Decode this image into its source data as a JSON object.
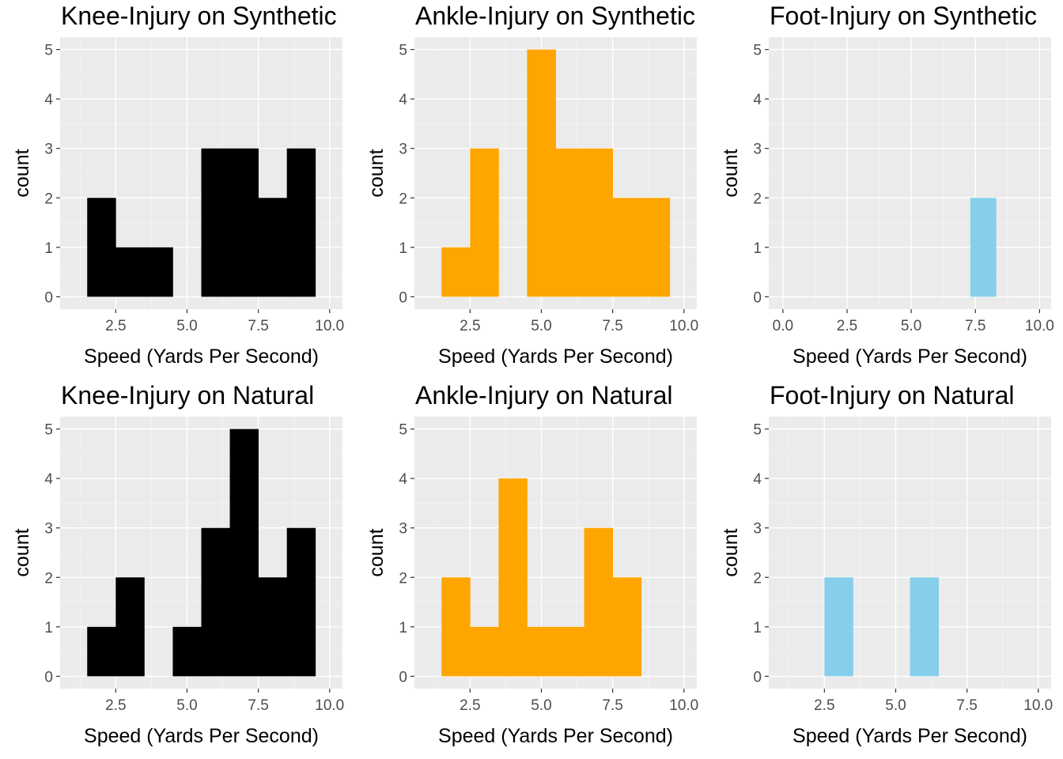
{
  "chart_data": [
    {
      "type": "bar",
      "title": "Knee-Injury on Synthetic",
      "xlabel": "Speed (Yards Per Second)",
      "ylabel": "count",
      "fill": "#000000",
      "bin_width": 1,
      "xlim": [
        0.55,
        10.45
      ],
      "ylim": [
        -0.25,
        5.25
      ],
      "x_ticks": [
        2.5,
        5,
        7.5,
        10
      ],
      "x_tick_labels": [
        "2.5",
        "5.0",
        "7.5",
        "10.0"
      ],
      "y_ticks": [
        0,
        1,
        2,
        3,
        4,
        5
      ],
      "y_tick_labels": [
        "0",
        "1",
        "2",
        "3",
        "4",
        "5"
      ],
      "bin_centers": [
        2,
        3,
        4,
        5,
        6,
        7,
        8,
        9
      ],
      "values": [
        2,
        1,
        1,
        0,
        3,
        3,
        2,
        3
      ]
    },
    {
      "type": "bar",
      "title": "Ankle-Injury on Synthetic",
      "xlabel": "Speed (Yards Per Second)",
      "ylabel": "count",
      "fill": "#FFA500",
      "bin_width": 1,
      "xlim": [
        0.55,
        10.45
      ],
      "ylim": [
        -0.25,
        5.25
      ],
      "x_ticks": [
        2.5,
        5,
        7.5,
        10
      ],
      "x_tick_labels": [
        "2.5",
        "5.0",
        "7.5",
        "10.0"
      ],
      "y_ticks": [
        0,
        1,
        2,
        3,
        4,
        5
      ],
      "y_tick_labels": [
        "0",
        "1",
        "2",
        "3",
        "4",
        "5"
      ],
      "bin_centers": [
        2,
        3,
        4,
        5,
        6,
        7,
        8,
        9
      ],
      "values": [
        1,
        3,
        0,
        5,
        3,
        3,
        2,
        2
      ]
    },
    {
      "type": "bar",
      "title": "Foot-Injury on Synthetic",
      "xlabel": "Speed (Yards Per Second)",
      "ylabel": "count",
      "fill": "#87CEEB",
      "bin_width": 1,
      "xlim": [
        -0.55,
        10.45
      ],
      "ylim": [
        -0.25,
        5.25
      ],
      "x_ticks": [
        0,
        2.5,
        5,
        7.5,
        10
      ],
      "x_tick_labels": [
        "0.0",
        "2.5",
        "5.0",
        "7.5",
        "10.0"
      ],
      "y_ticks": [
        0,
        1,
        2,
        3,
        4,
        5
      ],
      "y_tick_labels": [
        "0",
        "1",
        "2",
        "3",
        "4",
        "5"
      ],
      "bin_centers": [
        7.8
      ],
      "values": [
        2
      ]
    },
    {
      "type": "bar",
      "title": "Knee-Injury on Natural",
      "xlabel": "Speed (Yards Per Second)",
      "ylabel": "count",
      "fill": "#000000",
      "bin_width": 1,
      "xlim": [
        0.55,
        10.45
      ],
      "ylim": [
        -0.25,
        5.25
      ],
      "x_ticks": [
        2.5,
        5,
        7.5,
        10
      ],
      "x_tick_labels": [
        "2.5",
        "5.0",
        "7.5",
        "10.0"
      ],
      "y_ticks": [
        0,
        1,
        2,
        3,
        4,
        5
      ],
      "y_tick_labels": [
        "0",
        "1",
        "2",
        "3",
        "4",
        "5"
      ],
      "bin_centers": [
        2,
        3,
        4,
        5,
        6,
        7,
        8,
        9
      ],
      "values": [
        1,
        2,
        0,
        1,
        3,
        5,
        2,
        3
      ]
    },
    {
      "type": "bar",
      "title": "Ankle-Injury on Natural",
      "xlabel": "Speed (Yards Per Second)",
      "ylabel": "count",
      "fill": "#FFA500",
      "bin_width": 1,
      "xlim": [
        0.55,
        10.45
      ],
      "ylim": [
        -0.25,
        5.25
      ],
      "x_ticks": [
        2.5,
        5,
        7.5,
        10
      ],
      "x_tick_labels": [
        "2.5",
        "5.0",
        "7.5",
        "10.0"
      ],
      "y_ticks": [
        0,
        1,
        2,
        3,
        4,
        5
      ],
      "y_tick_labels": [
        "0",
        "1",
        "2",
        "3",
        "4",
        "5"
      ],
      "bin_centers": [
        2,
        3,
        4,
        5,
        6,
        7,
        8
      ],
      "values": [
        2,
        1,
        4,
        1,
        1,
        3,
        2
      ]
    },
    {
      "type": "bar",
      "title": "Foot-Injury on Natural",
      "xlabel": "Speed (Yards Per Second)",
      "ylabel": "count",
      "fill": "#87CEEB",
      "bin_width": 1,
      "xlim": [
        0.55,
        10.45
      ],
      "ylim": [
        -0.25,
        5.25
      ],
      "x_ticks": [
        2.5,
        5,
        7.5,
        10
      ],
      "x_tick_labels": [
        "2.5",
        "5.0",
        "7.5",
        "10.0"
      ],
      "y_ticks": [
        0,
        1,
        2,
        3,
        4,
        5
      ],
      "y_tick_labels": [
        "0",
        "1",
        "2",
        "3",
        "4",
        "5"
      ],
      "bin_centers": [
        3,
        6
      ],
      "values": [
        2,
        2
      ]
    }
  ]
}
